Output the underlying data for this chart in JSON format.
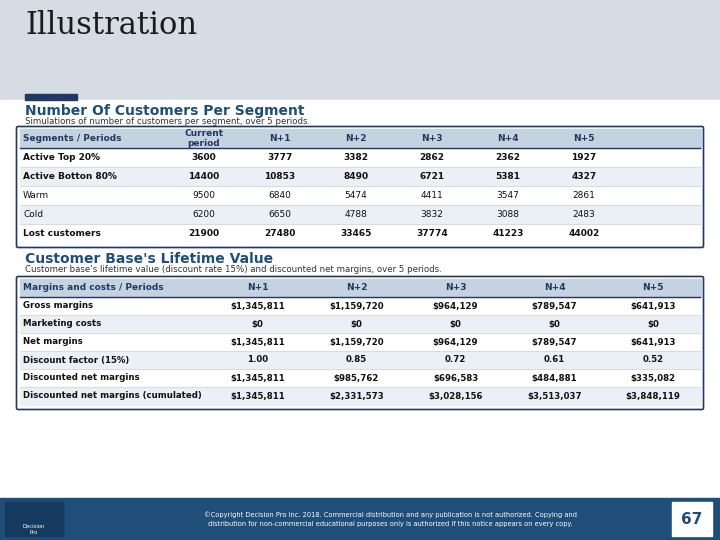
{
  "title": "Illustration",
  "bg_top": "#d6dce4",
  "bg_white": "#ffffff",
  "accent_color": "#1f3864",
  "blue_header": "#1f4e79",
  "table1_title": "Number Of Customers Per Segment",
  "table1_subtitle": "Simulations of number of customers per segment, over 5 periods.",
  "table1_header": [
    "Segments / Periods",
    "Current\nperiod",
    "N+1",
    "N+2",
    "N+3",
    "N+4",
    "N+5"
  ],
  "table1_rows": [
    [
      "Active Top 20%",
      "3600",
      "3777",
      "3382",
      "2862",
      "2362",
      "1927"
    ],
    [
      "Active Botton 80%",
      "14400",
      "10853",
      "8490",
      "6721",
      "5381",
      "4327"
    ],
    [
      "Warm",
      "9500",
      "6840",
      "5474",
      "4411",
      "3547",
      "2861"
    ],
    [
      "Cold",
      "6200",
      "6650",
      "4788",
      "3832",
      "3088",
      "2483"
    ],
    [
      "Lost customers",
      "21900",
      "27480",
      "33465",
      "37774",
      "41223",
      "44002"
    ]
  ],
  "table1_bold_rows": [
    0,
    1,
    4
  ],
  "table2_title": "Customer Base's Lifetime Value",
  "table2_subtitle": "Customer base's lifetime value (discount rate 15%) and discounted net margins, over 5 periods.",
  "table2_header": [
    "Margins and costs / Periods",
    "N+1",
    "N+2",
    "N+3",
    "N+4",
    "N+5"
  ],
  "table2_rows": [
    [
      "Gross margins",
      "$1,345,811",
      "$1,159,720",
      "$964,129",
      "$789,547",
      "$641,913"
    ],
    [
      "Marketing costs",
      "$0",
      "$0",
      "$0",
      "$0",
      "$0"
    ],
    [
      "Net margins",
      "$1,345,811",
      "$1,159,720",
      "$964,129",
      "$789,547",
      "$641,913"
    ],
    [
      "Discount factor (15%)",
      "1.00",
      "0.85",
      "0.72",
      "0.61",
      "0.52"
    ],
    [
      "Discounted net margins",
      "$1,345,811",
      "$985,762",
      "$696,583",
      "$484,881",
      "$335,082"
    ],
    [
      "Discounted net margins (cumulated)",
      "$1,345,811",
      "$2,331,573",
      "$3,028,156",
      "$3,513,037",
      "$3,848,119"
    ]
  ],
  "footer_text": "©Copyright Decision Pro Inc. 2018. Commercial distribution and any publication is not authorized. Copying and\ndistribution for non-commercial educational purposes only is authorized if this notice appears on every copy.",
  "page_number": "67",
  "footer_bg": "#1f4e79",
  "table_border_color": "#1f3864",
  "header_row_bg": "#c5d3e0",
  "header_text_color": "#1f3864",
  "alt_row_bg": "#eaf0f6",
  "title_color": "#1f4e79"
}
